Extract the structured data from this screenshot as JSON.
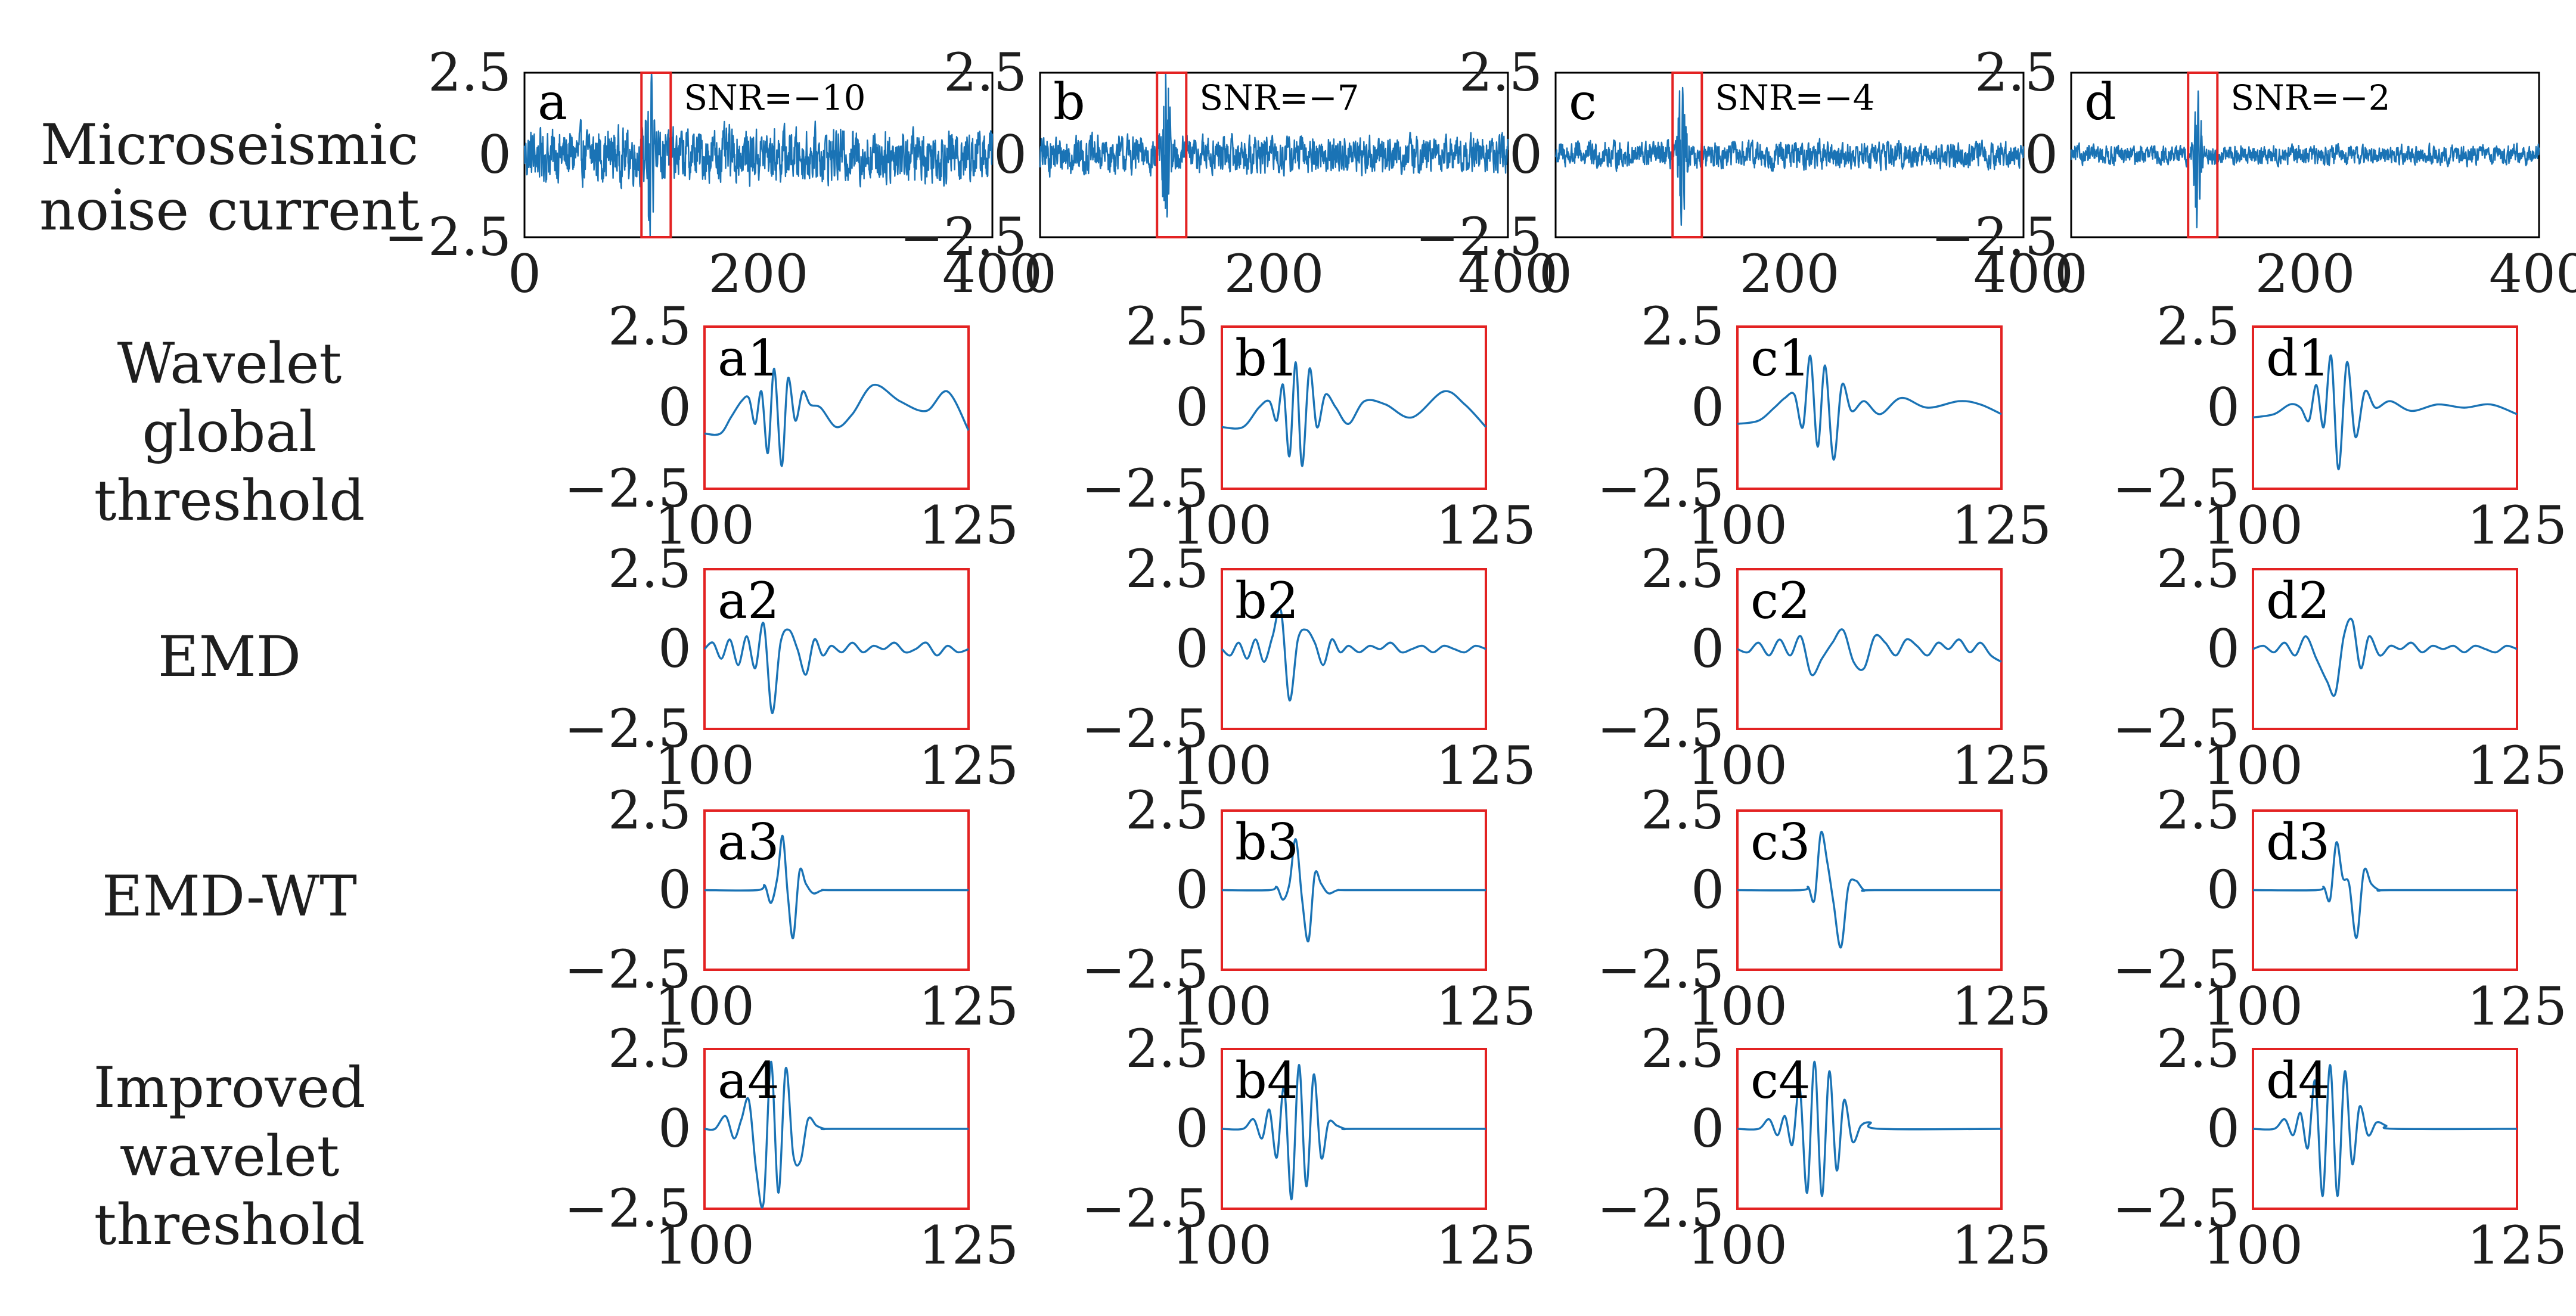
{
  "figure": {
    "row_labels": [
      [
        "Microseismic",
        "noise current"
      ],
      [
        "Wavelet",
        "global",
        "threshold"
      ],
      [
        "EMD"
      ],
      [
        "EMD-WT"
      ],
      [
        "Improved",
        "wavelet",
        "threshold"
      ]
    ],
    "colors": {
      "signal": "#1a73b5",
      "highlight": "#e32222",
      "axis": "#000000",
      "text": "#1e1e1e"
    }
  },
  "chart_data": [
    {
      "type": "line",
      "row": "Microseismic noise current",
      "xlim": [
        0,
        400
      ],
      "ylim": [
        -2.5,
        2.5
      ],
      "xticks": [
        "0",
        "200",
        "400"
      ],
      "yticks": [
        "2.5",
        "0",
        "-2.5"
      ],
      "panels": [
        {
          "label": "a",
          "snr": "SNR=-10",
          "noise_amplitude": 0.85,
          "event_amplitude": 2.4,
          "highlight_x": [
            100,
            125
          ]
        },
        {
          "label": "b",
          "snr": "SNR=-7",
          "noise_amplitude": 0.6,
          "event_amplitude": 2.3,
          "highlight_x": [
            100,
            125
          ]
        },
        {
          "label": "c",
          "snr": "SNR=-4",
          "noise_amplitude": 0.42,
          "event_amplitude": 2.3,
          "highlight_x": [
            100,
            125
          ]
        },
        {
          "label": "d",
          "snr": "SNR=-2",
          "noise_amplitude": 0.3,
          "event_amplitude": 2.2,
          "highlight_x": [
            100,
            125
          ]
        }
      ]
    },
    {
      "type": "line",
      "row": "Wavelet global threshold",
      "xlim": [
        100,
        125
      ],
      "ylim": [
        -2.5,
        2.5
      ],
      "xticks": [
        "100",
        "125"
      ],
      "yticks": [
        "2.5",
        "0",
        "-2.5"
      ],
      "panels": [
        {
          "label": "a1",
          "x": [
            100,
            101.5,
            102.5,
            103.5,
            104.2,
            104.8,
            105.4,
            106.0,
            106.6,
            107.3,
            107.9,
            108.6,
            109.3,
            110.0,
            111.0,
            112.5,
            114.0,
            116.0,
            118.5,
            121.0,
            123.0,
            125.0
          ],
          "y": [
            -0.8,
            -0.8,
            -0.3,
            0.2,
            0.3,
            -0.5,
            0.5,
            -1.4,
            1.2,
            -1.8,
            0.9,
            -0.4,
            0.5,
            0.1,
            0.0,
            -0.6,
            -0.2,
            0.7,
            0.2,
            -0.1,
            0.5,
            -0.7
          ]
        },
        {
          "label": "b1",
          "x": [
            100,
            102.0,
            103.5,
            104.5,
            105.2,
            105.8,
            106.4,
            107.0,
            107.6,
            108.3,
            109.0,
            109.8,
            110.8,
            112.0,
            113.5,
            115.5,
            118.0,
            121.0,
            123.0,
            125.0
          ],
          "y": [
            -0.6,
            -0.6,
            0.0,
            0.2,
            -0.4,
            0.7,
            -1.5,
            1.4,
            -1.8,
            1.2,
            -0.6,
            0.4,
            0.0,
            -0.5,
            0.2,
            0.1,
            -0.3,
            0.5,
            0.1,
            -0.6
          ]
        },
        {
          "label": "c1",
          "x": [
            100,
            102.0,
            103.5,
            104.5,
            105.4,
            106.2,
            106.9,
            107.6,
            108.3,
            109.1,
            109.9,
            110.8,
            112.0,
            113.5,
            115.5,
            118.0,
            121.0,
            123.0,
            125.0
          ],
          "y": [
            -0.5,
            -0.4,
            0.0,
            0.3,
            0.4,
            -0.6,
            1.6,
            -1.2,
            1.3,
            -1.6,
            0.7,
            -0.1,
            0.2,
            -0.2,
            0.3,
            0.0,
            0.2,
            0.1,
            -0.2
          ]
        },
        {
          "label": "d1",
          "x": [
            100,
            102.0,
            103.5,
            104.5,
            105.3,
            106.0,
            106.7,
            107.4,
            108.1,
            108.9,
            109.7,
            110.6,
            111.6,
            113.0,
            115.0,
            117.5,
            120.0,
            122.5,
            125.0
          ],
          "y": [
            -0.3,
            -0.2,
            0.1,
            0.0,
            -0.4,
            0.7,
            -0.6,
            1.6,
            -1.9,
            1.4,
            -0.9,
            0.5,
            0.0,
            0.2,
            -0.1,
            0.1,
            0.0,
            0.1,
            -0.2
          ]
        }
      ]
    },
    {
      "type": "line",
      "row": "EMD",
      "xlim": [
        100,
        125
      ],
      "ylim": [
        -2.5,
        2.5
      ],
      "xticks": [
        "100",
        "125"
      ],
      "yticks": [
        "2.5",
        "0",
        "-2.5"
      ],
      "panels": [
        {
          "label": "a2",
          "x": [
            100,
            100.8,
            101.6,
            102.4,
            103.2,
            104.0,
            104.8,
            105.6,
            106.4,
            107.2,
            108.0,
            108.8,
            109.6,
            110.4,
            111.2,
            112.0,
            113.0,
            114.0,
            115.0,
            116.0,
            117.0,
            118.0,
            119.0,
            120.0,
            121.0,
            122.0,
            123.0,
            124.0,
            125.0
          ],
          "y": [
            0.0,
            0.2,
            -0.3,
            0.3,
            -0.5,
            0.4,
            -0.6,
            0.8,
            -2.0,
            0.2,
            0.6,
            0.0,
            -0.8,
            0.3,
            -0.2,
            0.1,
            -0.1,
            0.2,
            -0.1,
            0.1,
            0.0,
            0.2,
            -0.1,
            0.0,
            0.2,
            -0.2,
            0.1,
            -0.1,
            0.0
          ]
        },
        {
          "label": "b2",
          "x": [
            100,
            100.8,
            101.6,
            102.4,
            103.2,
            104.0,
            104.8,
            105.6,
            106.4,
            107.2,
            108.0,
            108.8,
            109.6,
            110.4,
            111.2,
            112.0,
            113.0,
            114.0,
            115.0,
            116.0,
            117.0,
            118.0,
            119.0,
            120.0,
            121.0,
            122.0,
            123.0,
            124.0,
            125.0
          ],
          "y": [
            0.0,
            -0.2,
            0.2,
            -0.3,
            0.3,
            -0.4,
            0.4,
            1.2,
            -1.6,
            0.3,
            0.6,
            0.2,
            -0.5,
            0.3,
            -0.1,
            0.1,
            -0.1,
            0.1,
            0.0,
            0.2,
            -0.1,
            0.0,
            0.1,
            -0.1,
            0.1,
            0.0,
            -0.1,
            0.1,
            0.0
          ]
        },
        {
          "label": "c2",
          "x": [
            100,
            101.0,
            102.0,
            103.0,
            104.0,
            105.0,
            106.0,
            107.0,
            108.0,
            109.0,
            110.0,
            111.0,
            112.0,
            113.0,
            114.0,
            115.0,
            116.0,
            117.0,
            118.0,
            119.0,
            120.0,
            121.0,
            122.0,
            123.0,
            124.0,
            125.0
          ],
          "y": [
            0.0,
            -0.1,
            0.2,
            -0.2,
            0.3,
            -0.2,
            0.4,
            -0.8,
            -0.3,
            0.2,
            0.6,
            -0.4,
            -0.6,
            0.4,
            0.2,
            -0.2,
            0.3,
            0.1,
            -0.2,
            0.2,
            0.0,
            0.3,
            -0.1,
            0.2,
            -0.2,
            -0.4
          ]
        },
        {
          "label": "d2",
          "x": [
            100,
            101.0,
            102.0,
            103.0,
            104.0,
            105.0,
            106.0,
            107.0,
            107.8,
            108.6,
            109.4,
            110.2,
            111.0,
            112.0,
            113.0,
            114.0,
            115.0,
            116.0,
            117.0,
            118.0,
            119.0,
            120.0,
            121.0,
            122.0,
            123.0,
            124.0,
            125.0
          ],
          "y": [
            0.0,
            0.1,
            -0.1,
            0.2,
            -0.2,
            0.4,
            -0.3,
            -1.0,
            -1.4,
            0.4,
            0.9,
            -0.6,
            0.4,
            -0.2,
            0.1,
            0.0,
            0.2,
            -0.1,
            0.1,
            0.0,
            0.1,
            -0.1,
            0.1,
            0.0,
            -0.1,
            0.1,
            0.0
          ]
        }
      ]
    },
    {
      "type": "line",
      "row": "EMD-WT",
      "xlim": [
        100,
        125
      ],
      "ylim": [
        -2.5,
        2.5
      ],
      "xticks": [
        "100",
        "125"
      ],
      "yticks": [
        "2.5",
        "0",
        "-2.5"
      ],
      "panels": [
        {
          "label": "a3",
          "x": [
            100,
            105.0,
            105.7,
            106.3,
            106.9,
            107.4,
            107.9,
            108.4,
            109.0,
            109.6,
            110.3,
            111.2,
            112.5,
            125.0
          ],
          "y": [
            0.0,
            0.0,
            0.15,
            -0.4,
            0.4,
            1.7,
            -0.2,
            -1.5,
            0.6,
            0.2,
            -0.1,
            0.0,
            0.0,
            0.0
          ]
        },
        {
          "label": "b3",
          "x": [
            100,
            104.5,
            105.2,
            105.8,
            106.4,
            107.0,
            107.6,
            108.2,
            108.8,
            109.4,
            110.1,
            111.0,
            112.5,
            125.0
          ],
          "y": [
            0.0,
            0.0,
            0.1,
            -0.3,
            0.2,
            1.6,
            -0.3,
            -1.6,
            0.5,
            0.2,
            -0.1,
            0.0,
            0.0,
            0.0
          ]
        },
        {
          "label": "c3",
          "x": [
            100,
            106.0,
            106.7,
            107.3,
            107.9,
            108.5,
            109.1,
            109.8,
            110.5,
            111.2,
            112.0,
            113.0,
            125.0
          ],
          "y": [
            0.0,
            0.0,
            0.1,
            -0.3,
            1.8,
            0.9,
            -0.4,
            -1.8,
            0.1,
            0.3,
            0.0,
            0.0,
            0.0
          ]
        },
        {
          "label": "d3",
          "x": [
            100,
            106.0,
            106.7,
            107.3,
            107.9,
            108.5,
            109.1,
            109.8,
            110.5,
            111.2,
            112.0,
            113.0,
            125.0
          ],
          "y": [
            0.0,
            0.0,
            0.1,
            -0.3,
            1.5,
            0.4,
            0.2,
            -1.5,
            0.6,
            0.2,
            0.0,
            0.0,
            0.0
          ]
        }
      ]
    },
    {
      "type": "line",
      "row": "Improved wavelet threshold",
      "xlim": [
        100,
        125
      ],
      "ylim": [
        -2.5,
        2.5
      ],
      "xticks": [
        "100",
        "125"
      ],
      "yticks": [
        "2.5",
        "0",
        "-2.5"
      ],
      "panels": [
        {
          "label": "a4",
          "x": [
            100,
            101.0,
            102.0,
            102.8,
            103.5,
            104.2,
            104.9,
            105.6,
            106.3,
            107.0,
            107.7,
            108.4,
            109.1,
            109.8,
            110.6,
            111.4,
            112.3,
            125.0
          ],
          "y": [
            0.0,
            0.0,
            0.4,
            -0.3,
            0.3,
            0.9,
            -1.3,
            -2.3,
            2.1,
            -2.0,
            1.9,
            -0.8,
            -1.0,
            0.3,
            0.1,
            0.0,
            0.0,
            0.0
          ]
        },
        {
          "label": "b4",
          "x": [
            100,
            102.0,
            103.0,
            103.8,
            104.5,
            105.2,
            105.9,
            106.6,
            107.3,
            108.0,
            108.7,
            109.4,
            110.1,
            110.9,
            111.7,
            112.6,
            125.0
          ],
          "y": [
            0.0,
            0.0,
            0.3,
            -0.3,
            0.6,
            -0.9,
            1.3,
            -2.2,
            2.0,
            -1.8,
            1.7,
            -0.9,
            0.2,
            0.1,
            0.0,
            0.0,
            0.0
          ]
        },
        {
          "label": "c4",
          "x": [
            100,
            102.0,
            103.0,
            103.8,
            104.5,
            105.2,
            105.9,
            106.6,
            107.3,
            108.0,
            108.7,
            109.4,
            110.1,
            110.9,
            111.7,
            112.6,
            113.5,
            125.0
          ],
          "y": [
            0.0,
            0.0,
            0.3,
            -0.2,
            0.4,
            -0.5,
            1.3,
            -2.0,
            2.1,
            -2.1,
            1.8,
            -1.3,
            0.9,
            -0.4,
            0.1,
            0.2,
            0.0,
            0.0
          ]
        },
        {
          "label": "d4",
          "x": [
            100,
            102.0,
            103.0,
            103.8,
            104.5,
            105.2,
            105.9,
            106.6,
            107.3,
            108.0,
            108.7,
            109.4,
            110.1,
            110.9,
            111.7,
            112.6,
            113.5,
            125.0
          ],
          "y": [
            0.0,
            0.0,
            0.3,
            -0.2,
            0.5,
            -0.6,
            1.5,
            -2.1,
            2.0,
            -2.1,
            1.8,
            -1.1,
            0.7,
            -0.2,
            0.2,
            0.1,
            0.0,
            0.0
          ]
        }
      ]
    }
  ]
}
